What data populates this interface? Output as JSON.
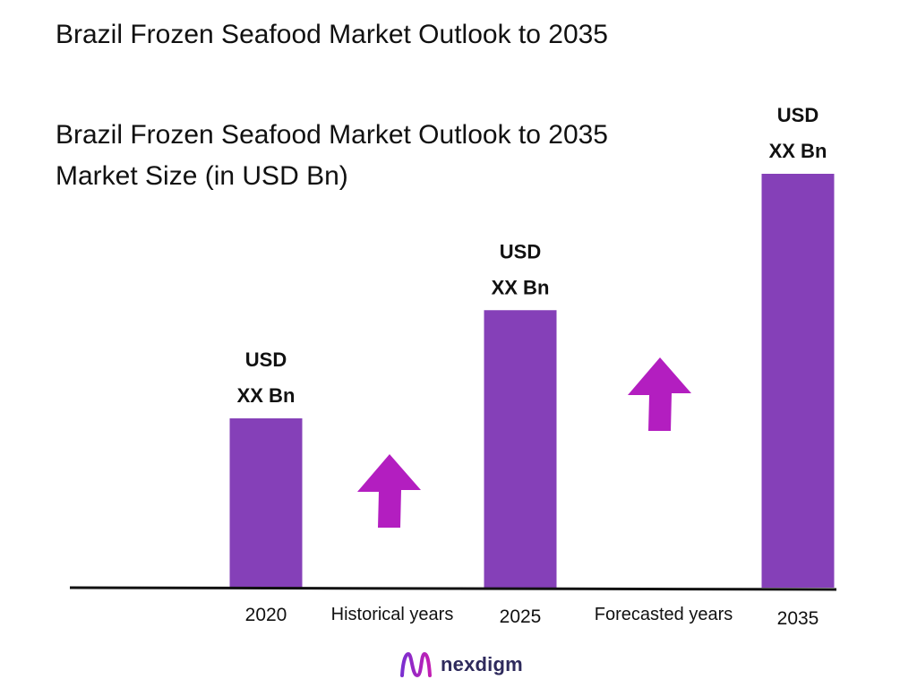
{
  "page": {
    "title": "Brazil Frozen Seafood Market Outlook to 2035"
  },
  "chart_data": {
    "type": "bar",
    "title": "Brazil Frozen Seafood Market Outlook to 2035",
    "subtitle": "Market Size (in USD Bn)",
    "categories": [
      "2020",
      "2025",
      "2035"
    ],
    "values": [
      36,
      59,
      88
    ],
    "ylim": [
      0,
      100
    ],
    "value_labels": [
      {
        "line1": "USD",
        "line2": "XX Bn"
      },
      {
        "line1": "USD",
        "line2": "XX Bn"
      },
      {
        "line1": "USD",
        "line2": "XX Bn"
      }
    ],
    "periods": [
      "Historical years",
      "Forecasted years"
    ],
    "grid": false,
    "legend": "none",
    "colors": {
      "bar": "#8540b8",
      "arrow": "#b31ec0",
      "axis": "#111111"
    }
  },
  "brand": {
    "name": "nexdigm",
    "logo_icon": "nexdigm-logo-icon"
  }
}
